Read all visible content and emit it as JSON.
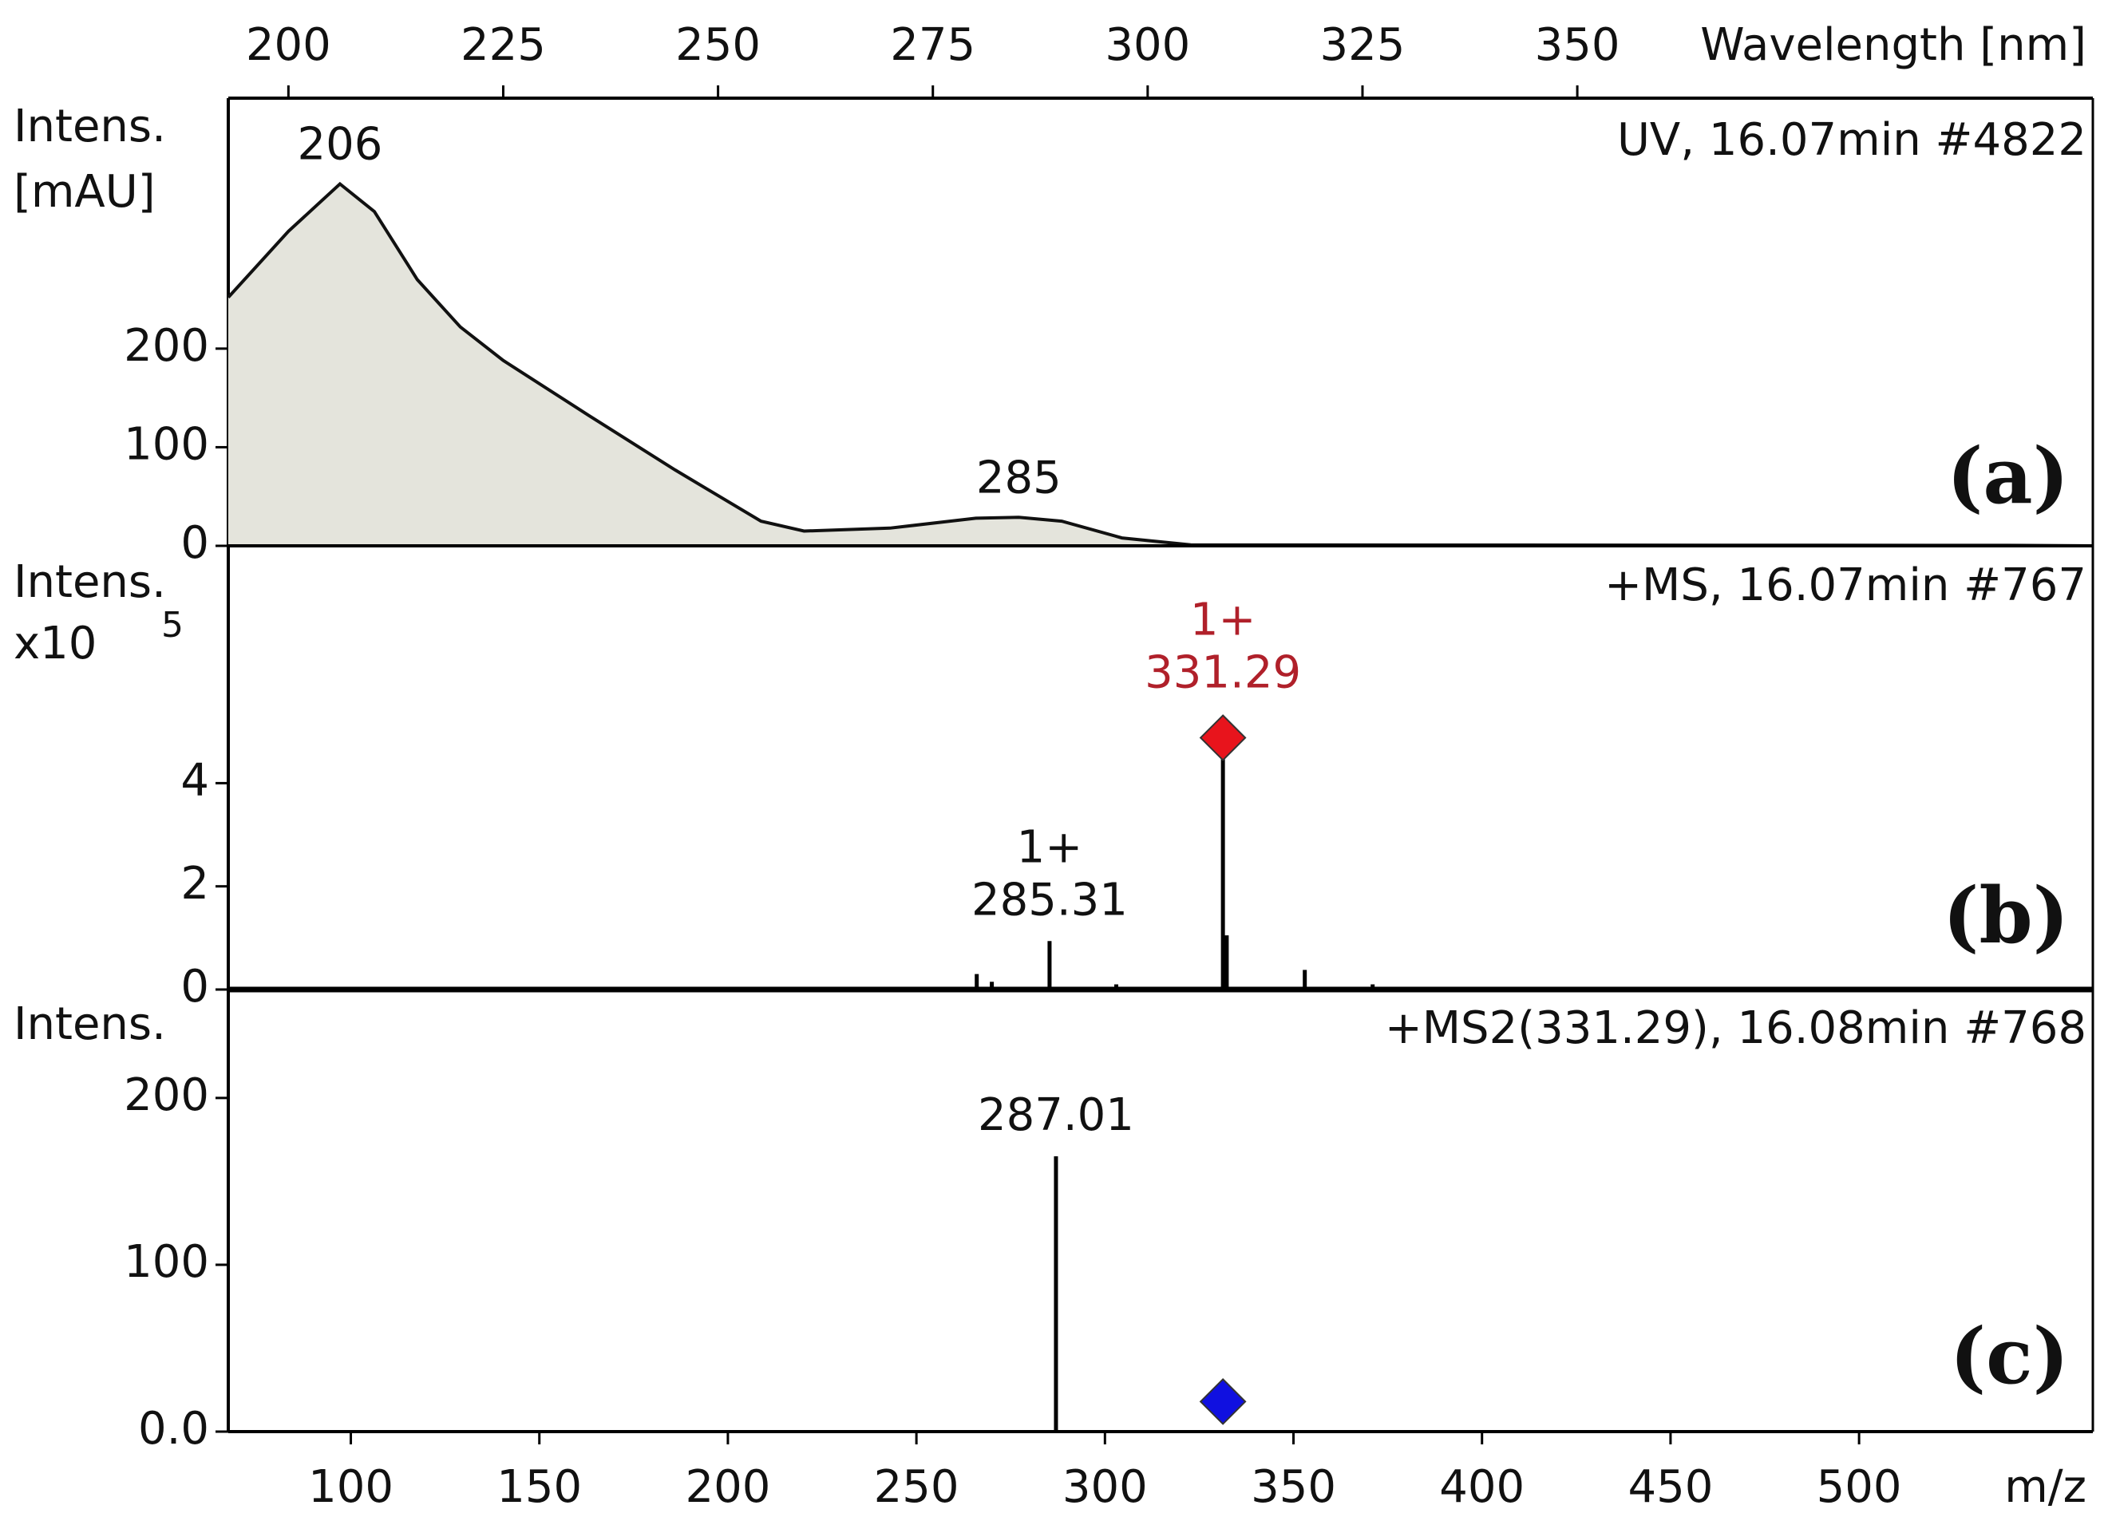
{
  "chart_data": [
    {
      "type": "area",
      "title": "UV, 16.07min #4822",
      "panel_label": "(a)",
      "x_label": "Wavelength [nm]",
      "y_label": [
        "Intens.",
        "[mAU]"
      ],
      "xaxis": "top",
      "x": [
        193,
        200,
        206,
        210,
        215,
        220,
        225,
        235,
        245,
        255,
        260,
        270,
        280,
        285,
        290,
        297,
        305,
        400,
        410
      ],
      "values": [
        252,
        319,
        367,
        339,
        270,
        222,
        188,
        132,
        77,
        25,
        15,
        18,
        28,
        29,
        25,
        8,
        1,
        0.5,
        0
      ],
      "color": "#e4e4dc",
      "xlim": [
        193,
        410
      ],
      "xticks": [
        200,
        225,
        250,
        275,
        300,
        325,
        350
      ],
      "ylim": [
        0,
        454
      ],
      "yticks": [
        0,
        100,
        200
      ],
      "peak_labels": [
        206,
        285
      ]
    },
    {
      "type": "stem",
      "title": "+MS, 16.07min #767",
      "panel_label": "(b)",
      "y_label": [
        "Intens.",
        "x10"
      ],
      "y_exponent": "5",
      "x": [
        266,
        270,
        285.31,
        303,
        331.29,
        332.3,
        353,
        371
      ],
      "values": [
        0.3,
        0.15,
        0.94,
        0.1,
        4.88,
        1.05,
        0.38,
        0.1
      ],
      "color": "#000000",
      "xlim": [
        67.5,
        562
      ],
      "ylim": [
        0,
        8.6
      ],
      "yticks": [
        0,
        2,
        4
      ],
      "annotations": [
        {
          "x": 285.31,
          "charge": "1+",
          "color": "#111111"
        },
        {
          "x": 331.29,
          "charge": "1+",
          "color": "#b0202a"
        }
      ],
      "precursor": {
        "x": 331.29,
        "value": 4.88,
        "color": "#e8141c"
      }
    },
    {
      "type": "stem",
      "title": "+MS2(331.29), 16.08min #768",
      "panel_label": "(c)",
      "x_label": "m/z",
      "y_label": [
        "Intens."
      ],
      "xaxis": "bottom",
      "x": [
        287.01
      ],
      "values": [
        165
      ],
      "color": "#000000",
      "xlim": [
        67.5,
        562
      ],
      "xticks": [
        100,
        150,
        200,
        250,
        300,
        350,
        400,
        450,
        500
      ],
      "ylim": [
        0,
        265
      ],
      "yticks": [
        {
          "value": 0,
          "label": "0.0"
        },
        100,
        200
      ],
      "annotations": [
        {
          "x": 287.01,
          "color": "#111111"
        }
      ],
      "precursor": {
        "x": 331.29,
        "value": 18,
        "color": "#1010e0"
      }
    }
  ]
}
